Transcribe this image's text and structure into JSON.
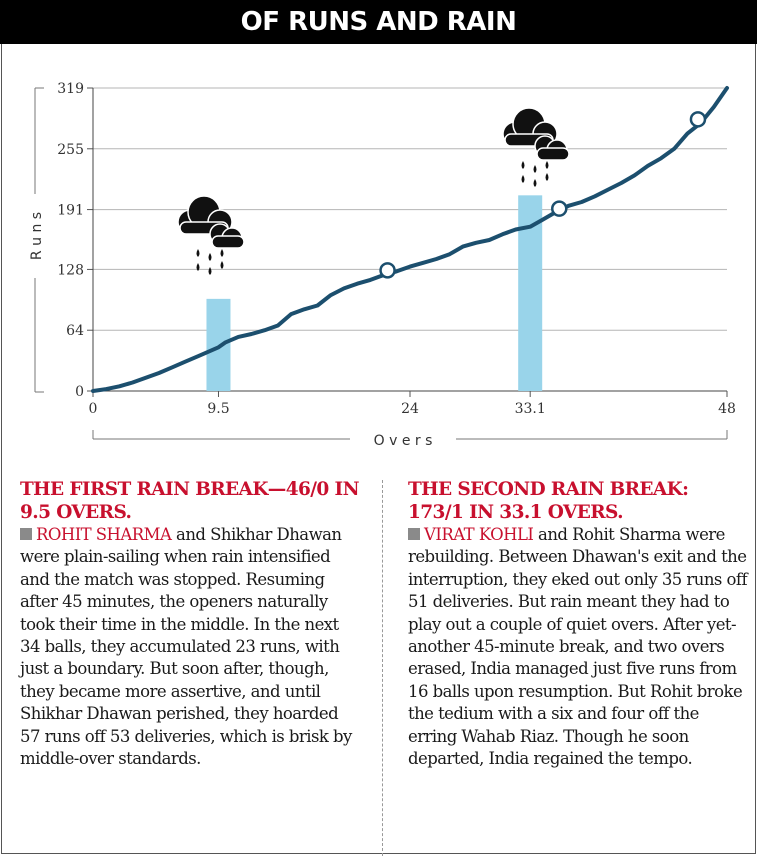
{
  "title": "OF RUNS AND RAIN",
  "chart_data": {
    "type": "line",
    "xlabel": "O v e r s",
    "ylabel": "R u n s",
    "xlim": [
      0,
      48
    ],
    "ylim": [
      0,
      319
    ],
    "x_ticks": [
      "0",
      "9.5",
      "24",
      "33.1",
      "48"
    ],
    "y_ticks": [
      "0",
      "64",
      "128",
      "191",
      "255",
      "319"
    ],
    "grid": true,
    "line_color": "#1c4f6e",
    "rain_bar_color": "#99d4ea",
    "series": [
      {
        "x": [
          0,
          1,
          2,
          3,
          4,
          5,
          6,
          7,
          8,
          9,
          9.5,
          10,
          11,
          12,
          13,
          14,
          15,
          16,
          17,
          18,
          19,
          20,
          21,
          22,
          23,
          24,
          25,
          26,
          27,
          28,
          29,
          30,
          31,
          32,
          33.1,
          34,
          35,
          36,
          37,
          38,
          39,
          40,
          41,
          42,
          43,
          44,
          45,
          46,
          47,
          48
        ],
        "y": [
          0,
          2,
          5,
          9,
          14,
          19,
          25,
          31,
          37,
          43,
          46,
          51,
          57,
          60,
          64,
          69,
          81,
          86,
          90,
          101,
          108,
          113,
          117,
          122,
          126,
          131,
          135,
          139,
          144,
          152,
          156,
          159,
          165,
          170,
          173,
          180,
          188,
          195,
          199,
          205,
          212,
          219,
          227,
          237,
          245,
          255,
          271,
          282,
          299,
          319
        ]
      }
    ],
    "rain_breaks": [
      {
        "x": 9.5,
        "y": 97
      },
      {
        "x": 33.1,
        "y": 206
      }
    ],
    "wickets": [
      {
        "x": 22.3,
        "y": 127
      },
      {
        "x": 35.3,
        "y": 192
      },
      {
        "x": 45.8,
        "y": 286
      }
    ]
  },
  "left": {
    "heading": "THE FIRST RAIN BREAK—46/0 IN 9.5 OVERS.",
    "lead": "ROHIT SHARMA",
    "body": " and Shikhar Dhawan were plain-sailing when rain intensified and the match was stopped. Resuming after 45 minutes, the openers naturally took their time in the middle. In the next 34 balls, they accumulated 23 runs, with just a boundary. But soon after, though, they became more assertive, and until Shikhar Dhawan perished, they hoarded 57 runs off 53 deliveries, which is brisk by middle-over standards."
  },
  "right": {
    "heading": "THE SECOND RAIN BREAK: 173/1 IN 33.1 OVERS.",
    "lead": "VIRAT KOHLI",
    "body": " and Rohit Sharma were rebuilding. Between Dhawan's exit and the interruption, they eked out only 35 runs off 51 deliveries. But rain meant they had to play out a couple of quiet overs. After yet-another 45-minute break, and two overs erased, India managed just five runs from 16 balls upon resumption. But Rohit broke the tedium with a six and four off the erring Wahab Riaz. Though he soon departed, India regained the tempo."
  }
}
